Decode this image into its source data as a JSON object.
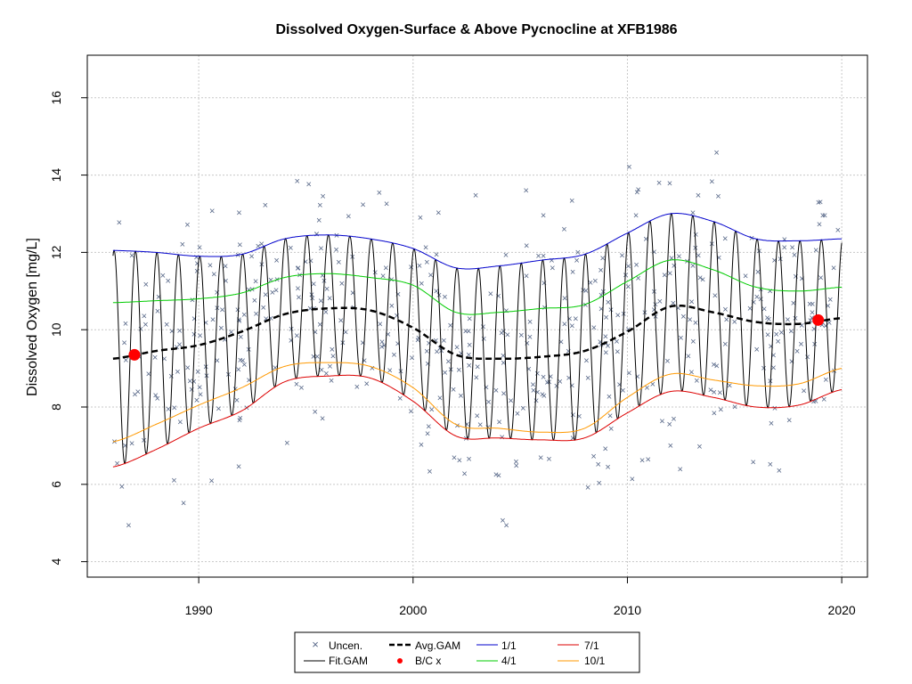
{
  "chart_data": {
    "type": "line",
    "title": "Dissolved Oxygen-Surface & Above Pycnocline at XFB1986",
    "xlabel": "",
    "ylabel": "Dissolved Oxygen [mg/L]",
    "xlim": [
      1984.8,
      2021.2
    ],
    "ylim": [
      3.6,
      17.1
    ],
    "x_ticks": [
      1990,
      2000,
      2010,
      2020
    ],
    "x_tick_labels": [
      "1990",
      "2000",
      "2010",
      "2020"
    ],
    "y_ticks": [
      4,
      6,
      8,
      10,
      12,
      14,
      16
    ],
    "y_tick_labels": [
      "4",
      "6",
      "8",
      "10",
      "12",
      "14",
      "16"
    ],
    "grid": true,
    "legend_position": "bottom-center",
    "legend": {
      "uncen": "Uncen.",
      "fitgam": "Fit.GAM",
      "avggam": "Avg.GAM",
      "bcx": "B/C x",
      "s1": "1/1",
      "s4": "4/1",
      "s7": "7/1",
      "s10": "10/1"
    },
    "colors": {
      "points": "#5a6a8a",
      "fit": "#000000",
      "avg": "#000000",
      "bc": "#ff0000",
      "s1": "#0000cc",
      "s4": "#00cc00",
      "s7": "#dd0000",
      "s10": "#ff9900"
    },
    "bc_points": [
      {
        "x": 1987.0,
        "y": 9.35
      },
      {
        "x": 2018.9,
        "y": 10.25
      }
    ],
    "series_knots": {
      "x": [
        1986,
        1988,
        1990,
        1992,
        1994,
        1996,
        1998,
        2000,
        2002,
        2004,
        2006,
        2008,
        2010,
        2012,
        2014,
        2016,
        2018,
        2020
      ],
      "avg": [
        9.25,
        9.45,
        9.6,
        9.95,
        10.4,
        10.55,
        10.5,
        10.05,
        9.35,
        9.25,
        9.3,
        9.45,
        9.95,
        10.6,
        10.45,
        10.2,
        10.15,
        10.3
      ],
      "s1": [
        12.05,
        12.0,
        11.9,
        11.95,
        12.35,
        12.45,
        12.35,
        12.1,
        11.6,
        11.65,
        11.8,
        11.95,
        12.5,
        13.0,
        12.8,
        12.35,
        12.3,
        12.35
      ],
      "s4": [
        10.7,
        10.75,
        10.8,
        10.95,
        11.35,
        11.45,
        11.35,
        11.15,
        10.45,
        10.45,
        10.55,
        10.65,
        11.25,
        11.8,
        11.55,
        11.1,
        11.0,
        11.1
      ],
      "s7": [
        6.45,
        6.9,
        7.45,
        7.9,
        8.65,
        8.8,
        8.75,
        8.15,
        7.25,
        7.2,
        7.15,
        7.2,
        7.85,
        8.4,
        8.25,
        8.0,
        8.05,
        8.45
      ],
      "s10": [
        7.1,
        7.55,
        8.05,
        8.5,
        9.05,
        9.15,
        9.05,
        8.5,
        7.55,
        7.45,
        7.35,
        7.45,
        8.25,
        8.85,
        8.7,
        8.55,
        8.6,
        9.0
      ]
    }
  }
}
